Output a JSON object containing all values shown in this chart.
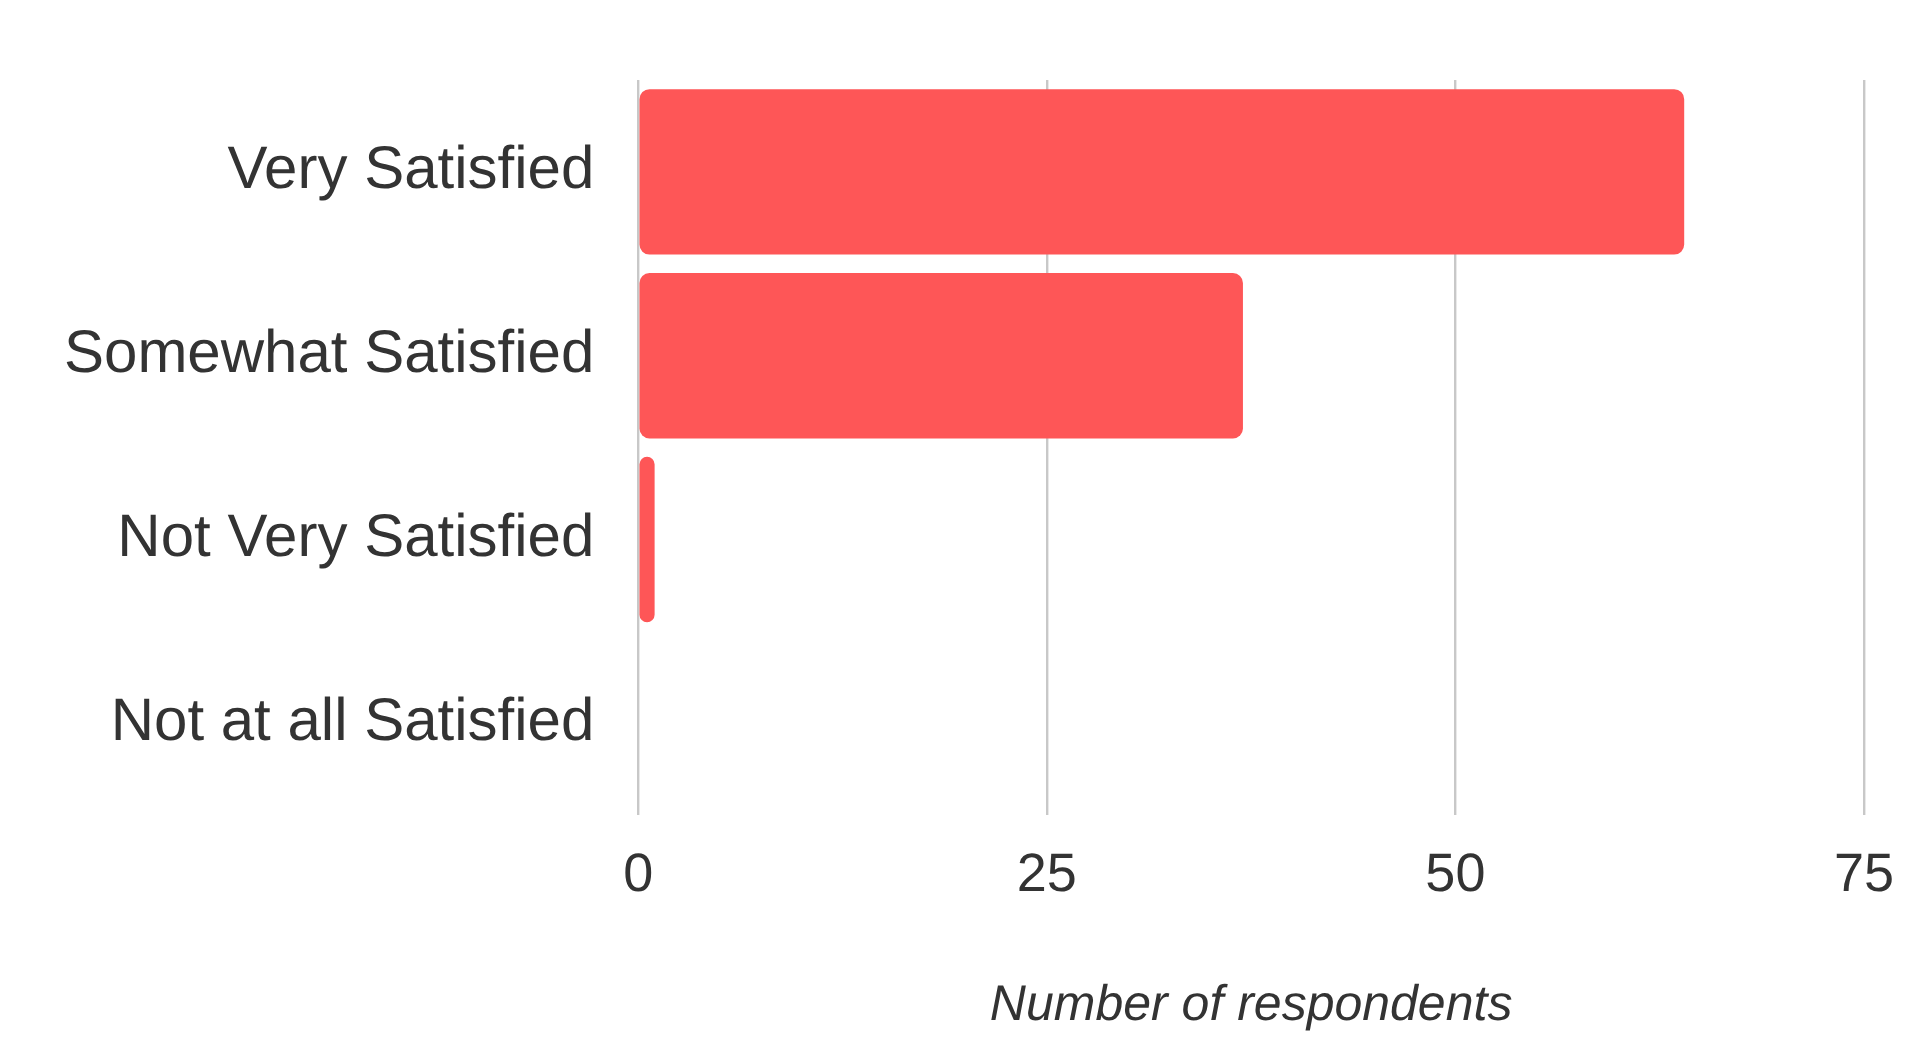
{
  "chart_data": {
    "type": "bar",
    "orientation": "horizontal",
    "categories": [
      "Very Satisfied",
      "Somewhat Satisfied",
      "Not Very Satisfied",
      "Not at all Satisfied"
    ],
    "values": [
      64,
      37,
      1,
      0
    ],
    "color": "#fe5657",
    "xlim": [
      0,
      75
    ],
    "xticks": [
      0,
      25,
      50,
      75
    ],
    "xlabel": "Number of respondents",
    "grid": "x",
    "legend": false
  }
}
